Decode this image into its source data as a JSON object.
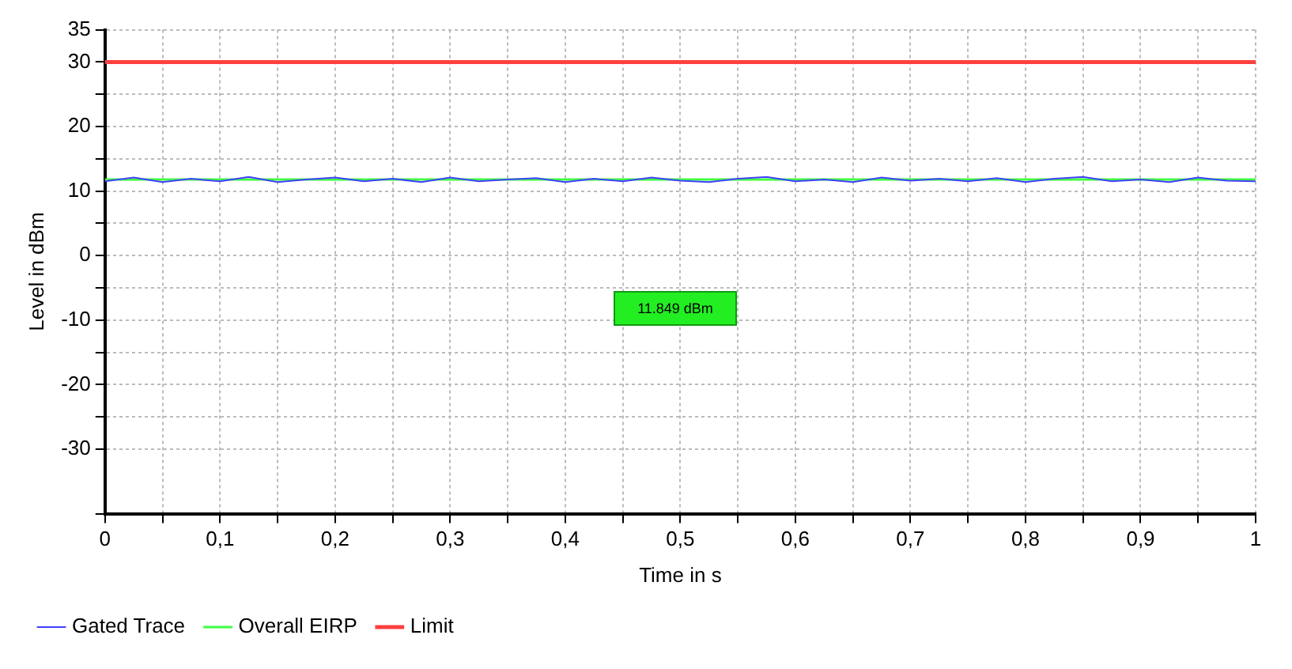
{
  "chart_data": {
    "type": "line",
    "xlabel": "Time in s",
    "ylabel": "Level in dBm",
    "xlim": [
      0,
      1
    ],
    "ylim": [
      -40,
      35
    ],
    "xticks": [
      0,
      {
        "value": 0.05,
        "label": null
      },
      {
        "value": 0.1,
        "label": "0,1"
      },
      {
        "value": 0.15,
        "label": null
      },
      {
        "value": 0.2,
        "label": "0,2"
      },
      {
        "value": 0.25,
        "label": null
      },
      {
        "value": 0.3,
        "label": "0,3"
      },
      {
        "value": 0.35,
        "label": null
      },
      {
        "value": 0.4,
        "label": "0,4"
      },
      {
        "value": 0.45,
        "label": null
      },
      {
        "value": 0.5,
        "label": "0,5"
      },
      {
        "value": 0.55,
        "label": null
      },
      {
        "value": 0.6,
        "label": "0,6"
      },
      {
        "value": 0.65,
        "label": null
      },
      {
        "value": 0.7,
        "label": "0,7"
      },
      {
        "value": 0.75,
        "label": null
      },
      {
        "value": 0.8,
        "label": "0,8"
      },
      {
        "value": 0.85,
        "label": null
      },
      {
        "value": 0.9,
        "label": "0,9"
      },
      {
        "value": 0.95,
        "label": null
      },
      1
    ],
    "yticks": [
      {
        "value": -40,
        "label": null
      },
      -30,
      {
        "value": -25,
        "label": null
      },
      -20,
      {
        "value": -15,
        "label": null
      },
      -10,
      {
        "value": -5,
        "label": null
      },
      0,
      {
        "value": 5,
        "label": null
      },
      10,
      {
        "value": 15,
        "label": null
      },
      20,
      {
        "value": 25,
        "label": null
      },
      30,
      35
    ],
    "grid": true,
    "legend": "bottom",
    "marker": "none",
    "line_style": "solid",
    "annotations": [
      "11.849 dBm"
    ],
    "x": [
      0,
      0.025,
      0.05,
      0.075,
      0.1,
      0.125,
      0.15,
      0.175,
      0.2,
      0.225,
      0.25,
      0.275,
      0.3,
      0.325,
      0.35,
      0.375,
      0.4,
      0.425,
      0.45,
      0.475,
      0.5,
      0.525,
      0.55,
      0.575,
      0.6,
      0.625,
      0.65,
      0.675,
      0.7,
      0.725,
      0.75,
      0.775,
      0.8,
      0.825,
      0.85,
      0.875,
      0.9,
      0.925,
      0.95,
      0.975,
      1
    ],
    "series": [
      {
        "name": "Gated Trace",
        "color": "#4040ff",
        "values": [
          11.5,
          12.1,
          11.4,
          11.9,
          11.5,
          12.2,
          11.4,
          11.8,
          12.1,
          11.5,
          11.9,
          11.4,
          12.1,
          11.5,
          11.8,
          12.0,
          11.4,
          11.9,
          11.5,
          12.1,
          11.6,
          11.4,
          11.9,
          12.2,
          11.5,
          11.8,
          11.4,
          12.1,
          11.6,
          11.9,
          11.5,
          12.0,
          11.4,
          11.9,
          12.2,
          11.5,
          11.8,
          11.4,
          12.1,
          11.6,
          11.5
        ]
      },
      {
        "name": "Overall EIRP",
        "color": "#40ff40",
        "values": [
          11.8,
          11.8,
          11.8,
          11.8,
          11.8,
          11.8,
          11.8,
          11.8,
          11.8,
          11.8,
          11.8,
          11.8,
          11.8,
          11.8,
          11.8,
          11.8,
          11.8,
          11.8,
          11.8,
          11.8,
          11.8,
          11.8,
          11.8,
          11.8,
          11.8,
          11.8,
          11.8,
          11.8,
          11.8,
          11.8,
          11.8,
          11.8,
          11.8,
          11.8,
          11.8,
          11.8,
          11.8,
          11.8,
          11.8,
          11.8,
          11.8
        ]
      },
      {
        "name": "Limit",
        "color": "#ff4040",
        "values": [
          30,
          30,
          30,
          30,
          30,
          30,
          30,
          30,
          30,
          30,
          30,
          30,
          30,
          30,
          30,
          30,
          30,
          30,
          30,
          30,
          30,
          30,
          30,
          30,
          30,
          30,
          30,
          30,
          30,
          30,
          30,
          30,
          30,
          30,
          30,
          30,
          30,
          30,
          30,
          30,
          30
        ]
      }
    ]
  }
}
